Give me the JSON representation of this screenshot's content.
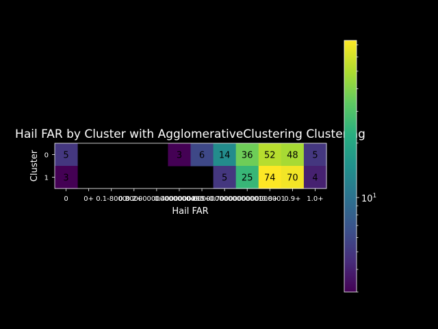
{
  "chart_data": {
    "type": "heatmap",
    "title": "Hail FAR by Cluster with AgglomerativeClustering Clustering",
    "xlabel": "Hail FAR",
    "ylabel": "Cluster",
    "x_categories": [
      "0",
      "0+",
      "0.1-8000",
      "0.2+",
      "0.3000000000000004",
      "0.4000000000",
      "0.5+",
      "0.6000000000000001",
      "0.7000000000000001",
      "0.8+",
      "0.9+",
      "1.0+"
    ],
    "y_categories": [
      "0",
      "1"
    ],
    "values": [
      [
        5,
        null,
        null,
        null,
        null,
        3,
        6,
        14,
        36,
        52,
        48,
        5
      ],
      [
        3,
        null,
        null,
        null,
        null,
        null,
        null,
        5,
        25,
        74,
        70,
        4
      ]
    ],
    "colorbar": {
      "scale": "log",
      "colormap": "viridis",
      "min": 3,
      "max": 74,
      "major_tick_label": "10^1"
    }
  }
}
